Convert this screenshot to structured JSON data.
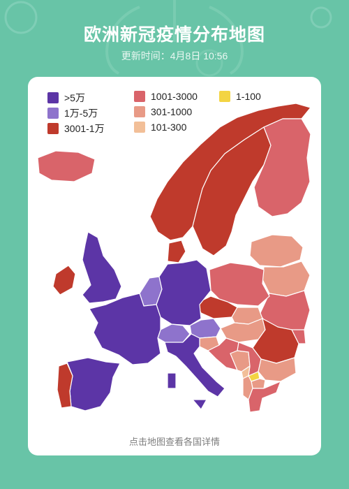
{
  "header": {
    "title": "欧洲新冠疫情分布地图",
    "update_label": "更新时间：",
    "update_time": "4月8日 10:56"
  },
  "legend": [
    {
      "label": ">5万",
      "color": "#5c35a6"
    },
    {
      "label": "1万-5万",
      "color": "#8e73cc"
    },
    {
      "label": "3001-1万",
      "color": "#bf3a2c"
    },
    {
      "label": "1001-3000",
      "color": "#d9646a"
    },
    {
      "label": "301-1000",
      "color": "#e89a86"
    },
    {
      "label": "101-300",
      "color": "#f2bf98"
    },
    {
      "label": "1-100",
      "color": "#f3d443"
    }
  ],
  "map": {
    "tiers": {
      "iceland": 3,
      "ireland": 2,
      "uk": 0,
      "portugal": 2,
      "spain": 0,
      "france": 0,
      "benelux": 1,
      "germany": 0,
      "switzerland": 1,
      "austria": 1,
      "italy": 0,
      "denmark": 2,
      "norway": 2,
      "sweden": 2,
      "finland": 3,
      "baltics": 4,
      "poland": 3,
      "czechia": 2,
      "slovakia": 4,
      "hungary": 4,
      "slovenia": 4,
      "croatia": 3,
      "bosnia": 4,
      "serbia": 3,
      "montenegro": 5,
      "kosovo": 6,
      "macedonia": 4,
      "albania": 4,
      "greece": 3,
      "bulgaria": 4,
      "romania": 2,
      "moldova": 3,
      "ukraine": 3,
      "belarus": 4
    }
  },
  "footer": {
    "text": "点击地图查看各国详情"
  }
}
